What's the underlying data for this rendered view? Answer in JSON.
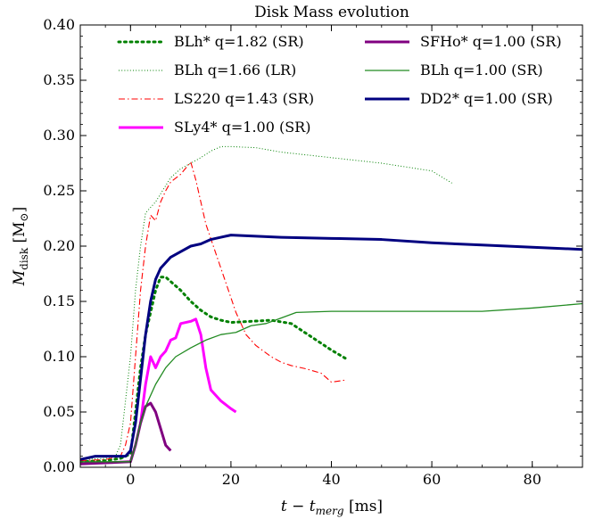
{
  "chart_data": {
    "type": "line",
    "title": "Disk Mass evolution",
    "xlabel": "t − t",
    "xlabel_sub": "merg",
    "xlabel_unit": " [ms]",
    "ylabel": "M",
    "ylabel_sub": "disk",
    "ylabel_unit_open": " [M",
    "ylabel_unit_symbol": "⊙",
    "ylabel_unit_close": "]",
    "xlim": [
      -10,
      90
    ],
    "ylim": [
      0.0,
      0.4
    ],
    "xticks": [
      0,
      20,
      40,
      60,
      80
    ],
    "xtick_labels": [
      "0",
      "20",
      "40",
      "60",
      "80"
    ],
    "yticks": [
      0.0,
      0.05,
      0.1,
      0.15,
      0.2,
      0.25,
      0.3,
      0.35,
      0.4
    ],
    "ytick_labels": [
      "0.00",
      "0.05",
      "0.10",
      "0.15",
      "0.20",
      "0.25",
      "0.30",
      "0.35",
      "0.40"
    ],
    "grid": false,
    "legend_position": "top",
    "series": [
      {
        "name": "BLh* q=1.82 (SR)",
        "color": "#008000",
        "style": "dotted",
        "points": [
          [
            -10,
            0.005
          ],
          [
            -5,
            0.006
          ],
          [
            -2,
            0.008
          ],
          [
            -1,
            0.01
          ],
          [
            0,
            0.012
          ],
          [
            1,
            0.05
          ],
          [
            2,
            0.09
          ],
          [
            3,
            0.12
          ],
          [
            4,
            0.14
          ],
          [
            5,
            0.16
          ],
          [
            6,
            0.172
          ],
          [
            7,
            0.172
          ],
          [
            8,
            0.168
          ],
          [
            10,
            0.16
          ],
          [
            12,
            0.15
          ],
          [
            14,
            0.142
          ],
          [
            16,
            0.136
          ],
          [
            18,
            0.133
          ],
          [
            20,
            0.131
          ],
          [
            24,
            0.132
          ],
          [
            28,
            0.133
          ],
          [
            32,
            0.13
          ],
          [
            36,
            0.118
          ],
          [
            40,
            0.106
          ],
          [
            43,
            0.098
          ]
        ]
      },
      {
        "name": "BLh q=1.66 (LR)",
        "color": "#008000",
        "style": "thin",
        "points": [
          [
            -10,
            0.007
          ],
          [
            -5,
            0.008
          ],
          [
            -3,
            0.01
          ],
          [
            -2,
            0.02
          ],
          [
            0,
            0.1
          ],
          [
            1,
            0.16
          ],
          [
            2,
            0.2
          ],
          [
            3,
            0.23
          ],
          [
            5,
            0.24
          ],
          [
            8,
            0.262
          ],
          [
            10,
            0.27
          ],
          [
            12,
            0.275
          ],
          [
            14,
            0.28
          ],
          [
            16,
            0.286
          ],
          [
            18,
            0.29
          ],
          [
            20,
            0.29
          ],
          [
            25,
            0.289
          ],
          [
            30,
            0.285
          ],
          [
            40,
            0.28
          ],
          [
            50,
            0.275
          ],
          [
            60,
            0.268
          ],
          [
            64,
            0.257
          ]
        ]
      },
      {
        "name": "LS220 q=1.43 (SR)",
        "color": "#ff0000",
        "style": "dashdot",
        "points": [
          [
            -10,
            0.006
          ],
          [
            -5,
            0.007
          ],
          [
            -2,
            0.01
          ],
          [
            -1,
            0.02
          ],
          [
            0,
            0.04
          ],
          [
            1,
            0.1
          ],
          [
            2,
            0.16
          ],
          [
            3,
            0.2
          ],
          [
            4,
            0.228
          ],
          [
            5,
            0.223
          ],
          [
            6,
            0.24
          ],
          [
            7,
            0.25
          ],
          [
            8,
            0.258
          ],
          [
            10,
            0.265
          ],
          [
            12,
            0.276
          ],
          [
            13,
            0.26
          ],
          [
            14,
            0.24
          ],
          [
            15,
            0.22
          ],
          [
            18,
            0.18
          ],
          [
            21,
            0.14
          ],
          [
            23,
            0.12
          ],
          [
            25,
            0.11
          ],
          [
            28,
            0.1
          ],
          [
            30,
            0.095
          ],
          [
            32,
            0.092
          ],
          [
            35,
            0.089
          ],
          [
            38,
            0.085
          ],
          [
            40,
            0.077
          ],
          [
            43,
            0.079
          ]
        ]
      },
      {
        "name": "SLy4* q=1.00 (SR)",
        "color": "#ff00ff",
        "style": "thick",
        "points": [
          [
            2,
            0.04
          ],
          [
            3,
            0.075
          ],
          [
            4,
            0.1
          ],
          [
            5,
            0.09
          ],
          [
            6,
            0.1
          ],
          [
            7,
            0.105
          ],
          [
            8,
            0.115
          ],
          [
            9,
            0.117
          ],
          [
            10,
            0.13
          ],
          [
            12,
            0.132
          ],
          [
            13,
            0.134
          ],
          [
            14,
            0.12
          ],
          [
            15,
            0.09
          ],
          [
            16,
            0.07
          ],
          [
            18,
            0.06
          ],
          [
            20,
            0.053
          ],
          [
            21,
            0.05
          ]
        ]
      },
      {
        "name": "SFHo* q=1.00 (SR)",
        "color": "#800080",
        "style": "thick",
        "points": [
          [
            -10,
            0.003
          ],
          [
            -5,
            0.004
          ],
          [
            0,
            0.005
          ],
          [
            1,
            0.02
          ],
          [
            2,
            0.04
          ],
          [
            3,
            0.055
          ],
          [
            4,
            0.058
          ],
          [
            5,
            0.05
          ],
          [
            6,
            0.035
          ],
          [
            7,
            0.02
          ],
          [
            8,
            0.015
          ]
        ]
      },
      {
        "name": "BLh q=1.00 (SR)",
        "color": "#228b22",
        "style": "medium",
        "points": [
          [
            -10,
            0.005
          ],
          [
            -5,
            0.005
          ],
          [
            0,
            0.005
          ],
          [
            1,
            0.02
          ],
          [
            2,
            0.04
          ],
          [
            3,
            0.055
          ],
          [
            5,
            0.075
          ],
          [
            7,
            0.09
          ],
          [
            9,
            0.1
          ],
          [
            12,
            0.108
          ],
          [
            15,
            0.115
          ],
          [
            18,
            0.12
          ],
          [
            21,
            0.122
          ],
          [
            24,
            0.128
          ],
          [
            27,
            0.13
          ],
          [
            30,
            0.135
          ],
          [
            33,
            0.14
          ],
          [
            40,
            0.141
          ],
          [
            50,
            0.141
          ],
          [
            60,
            0.141
          ],
          [
            70,
            0.141
          ],
          [
            80,
            0.144
          ],
          [
            90,
            0.148
          ]
        ]
      },
      {
        "name": "DD2* q=1.00 (SR)",
        "color": "#000080",
        "style": "thick",
        "points": [
          [
            -10,
            0.007
          ],
          [
            -7,
            0.01
          ],
          [
            -4,
            0.01
          ],
          [
            -1,
            0.01
          ],
          [
            0,
            0.015
          ],
          [
            1,
            0.04
          ],
          [
            2,
            0.08
          ],
          [
            3,
            0.12
          ],
          [
            4,
            0.15
          ],
          [
            5,
            0.17
          ],
          [
            6,
            0.18
          ],
          [
            8,
            0.19
          ],
          [
            10,
            0.195
          ],
          [
            12,
            0.2
          ],
          [
            14,
            0.202
          ],
          [
            16,
            0.206
          ],
          [
            18,
            0.208
          ],
          [
            20,
            0.21
          ],
          [
            25,
            0.209
          ],
          [
            30,
            0.208
          ],
          [
            40,
            0.207
          ],
          [
            50,
            0.206
          ],
          [
            60,
            0.203
          ],
          [
            70,
            0.201
          ],
          [
            80,
            0.199
          ],
          [
            90,
            0.197
          ]
        ]
      }
    ],
    "legend_order": [
      0,
      4,
      1,
      5,
      2,
      6,
      3
    ]
  }
}
